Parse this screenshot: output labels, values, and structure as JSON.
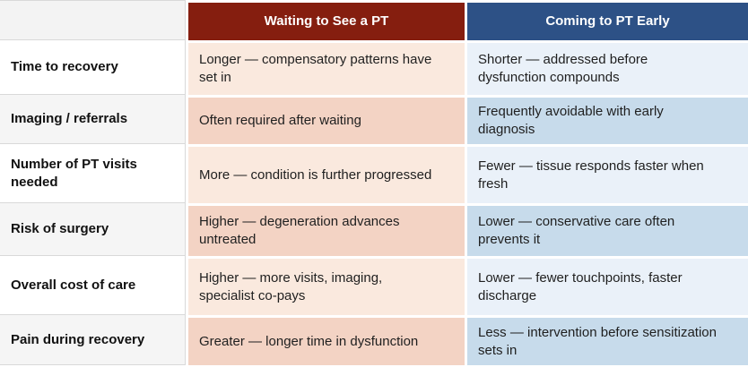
{
  "theme": {
    "header_red": "#851E0F",
    "header_blue": "#2D5186",
    "cell_red_light": "#FAE9DE",
    "cell_red_dark": "#F3D3C4",
    "cell_blue_light": "#EAF1F9",
    "cell_blue_dark": "#C7DBEB",
    "label_stripe": "#F5F5F5",
    "corner_bg": "#F3F3F3",
    "grid_line": "#D9D9D9",
    "header_text": "#FFFFFF",
    "body_text": "#1F1F1F"
  },
  "table": {
    "columns": [
      {
        "label": "Waiting to See a PT"
      },
      {
        "label": "Coming to PT Early"
      }
    ],
    "rows": [
      {
        "label": "Time to recovery",
        "waiting": "Longer — compensatory patterns have set in",
        "early": "Shorter — addressed before dysfunction compounds"
      },
      {
        "label": "Imaging / referrals",
        "waiting": "Often required after waiting",
        "early": "Frequently avoidable with early diagnosis"
      },
      {
        "label": "Number of PT visits needed",
        "waiting": "More — condition is further progressed",
        "early": "Fewer — tissue responds faster when fresh"
      },
      {
        "label": "Risk of surgery",
        "waiting": "Higher — degeneration advances untreated",
        "early": "Lower — conservative care often prevents it"
      },
      {
        "label": "Overall cost of care",
        "waiting": "Higher — more visits, imaging, specialist co-pays",
        "early": "Lower — fewer touchpoints, faster discharge"
      },
      {
        "label": "Pain during recovery",
        "waiting": "Greater — longer time in dysfunction",
        "early": "Less — intervention before sensitization sets in"
      }
    ]
  }
}
